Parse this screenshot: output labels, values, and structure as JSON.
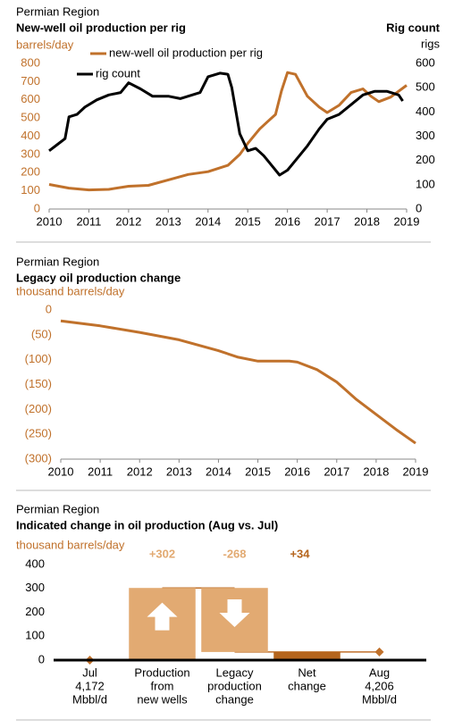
{
  "chart_data": [
    {
      "type": "line",
      "subtitle": "Permian Region",
      "title": "New-well oil production per rig",
      "ylabel": "barrels/day",
      "y2title": "Rig count",
      "y2label": "rigs",
      "ytick_color": "#c0712b",
      "xlim": [
        2010,
        2019
      ],
      "xticks": [
        2010,
        2011,
        2012,
        2013,
        2014,
        2015,
        2016,
        2017,
        2018,
        2019
      ],
      "ylim": [
        0,
        800
      ],
      "yticks": [
        0,
        100,
        200,
        300,
        400,
        500,
        600,
        700,
        800
      ],
      "y2lim": [
        0,
        600
      ],
      "y2ticks": [
        0,
        100,
        200,
        300,
        400,
        500,
        600
      ],
      "series": [
        {
          "name": "new-well oil production per rig",
          "color": "#c0712b",
          "x": [
            2010,
            2010.5,
            2011,
            2011.5,
            2012,
            2012.5,
            2013,
            2013.5,
            2014,
            2014.5,
            2014.8,
            2015,
            2015.3,
            2015.5,
            2015.7,
            2015.85,
            2016,
            2016.2,
            2016.5,
            2016.8,
            2017,
            2017.3,
            2017.6,
            2017.9,
            2018.1,
            2018.3,
            2018.6,
            2019
          ],
          "values": [
            135,
            115,
            105,
            108,
            125,
            130,
            160,
            190,
            205,
            240,
            300,
            360,
            440,
            480,
            520,
            650,
            750,
            740,
            620,
            560,
            530,
            570,
            640,
            660,
            620,
            590,
            615,
            680
          ]
        },
        {
          "name": "rig count",
          "color": "#000000",
          "axis": "y2",
          "x": [
            2010,
            2010.2,
            2010.4,
            2010.5,
            2010.7,
            2010.9,
            2011.2,
            2011.5,
            2011.8,
            2012,
            2012.3,
            2012.6,
            2013,
            2013.3,
            2013.5,
            2013.8,
            2014,
            2014.3,
            2014.5,
            2014.6,
            2014.8,
            2015,
            2015.2,
            2015.4,
            2015.6,
            2015.8,
            2016,
            2016.2,
            2016.5,
            2016.8,
            2017,
            2017.3,
            2017.6,
            2017.9,
            2018.2,
            2018.5,
            2018.8,
            2018.9
          ],
          "values": [
            240,
            265,
            290,
            380,
            390,
            420,
            450,
            470,
            480,
            520,
            495,
            465,
            465,
            455,
            465,
            480,
            545,
            560,
            555,
            500,
            310,
            240,
            250,
            220,
            180,
            140,
            160,
            200,
            260,
            330,
            370,
            390,
            430,
            470,
            485,
            485,
            470,
            445
          ]
        }
      ]
    },
    {
      "type": "line",
      "subtitle": "Permian Region",
      "title": "Legacy oil production change",
      "ylabel": "thousand barrels/day",
      "ytick_color": "#c0712b",
      "xlim": [
        2010,
        2019
      ],
      "xticks": [
        2010,
        2011,
        2012,
        2013,
        2014,
        2015,
        2016,
        2017,
        2018,
        2019
      ],
      "ylim": [
        -300,
        0
      ],
      "yticks": [
        0,
        {
          "value": -50,
          "label": "(50)"
        },
        {
          "value": -100,
          "label": "(100)"
        },
        {
          "value": -150,
          "label": "(150)"
        },
        {
          "value": -200,
          "label": "(200)"
        },
        {
          "value": -250,
          "label": "(250)"
        },
        {
          "value": -300,
          "label": "(300)"
        }
      ],
      "series": [
        {
          "color": "#c0712b",
          "x": [
            2010,
            2011,
            2012,
            2013,
            2014,
            2014.5,
            2015,
            2015.8,
            2016,
            2016.5,
            2017,
            2017.5,
            2018,
            2018.5,
            2019
          ],
          "values": [
            -22,
            -32,
            -45,
            -60,
            -82,
            -95,
            -103,
            -103,
            -105,
            -120,
            -145,
            -180,
            -210,
            -240,
            -268
          ]
        }
      ]
    },
    {
      "type": "waterfall",
      "subtitle": "Permian Region",
      "title": "Indicated change in oil production (Aug vs. Jul)",
      "ylabel": "thousand barrels/day",
      "ylabel_color": "#c0712b",
      "ylim": [
        0,
        400
      ],
      "yticks": [
        0,
        100,
        200,
        300,
        400
      ],
      "categories": [
        [
          "Jul",
          "4,172",
          "Mbbl/d"
        ],
        [
          "Production",
          "from",
          "new wells"
        ],
        [
          "Legacy",
          "production",
          "change"
        ],
        [
          "Net",
          "change"
        ],
        [
          "Aug",
          "4,206",
          "Mbbl/d"
        ]
      ],
      "kinds": [
        "level",
        "change",
        "change",
        "total",
        "level"
      ],
      "values": [
        0,
        302,
        -268,
        34,
        34
      ],
      "value_labels": [
        null,
        "+302",
        "-268",
        "+34",
        null
      ],
      "colors": [
        "#c0712b",
        "#e2aa72",
        "#e2aa72",
        "#b5651d",
        "#c0712b"
      ]
    }
  ]
}
